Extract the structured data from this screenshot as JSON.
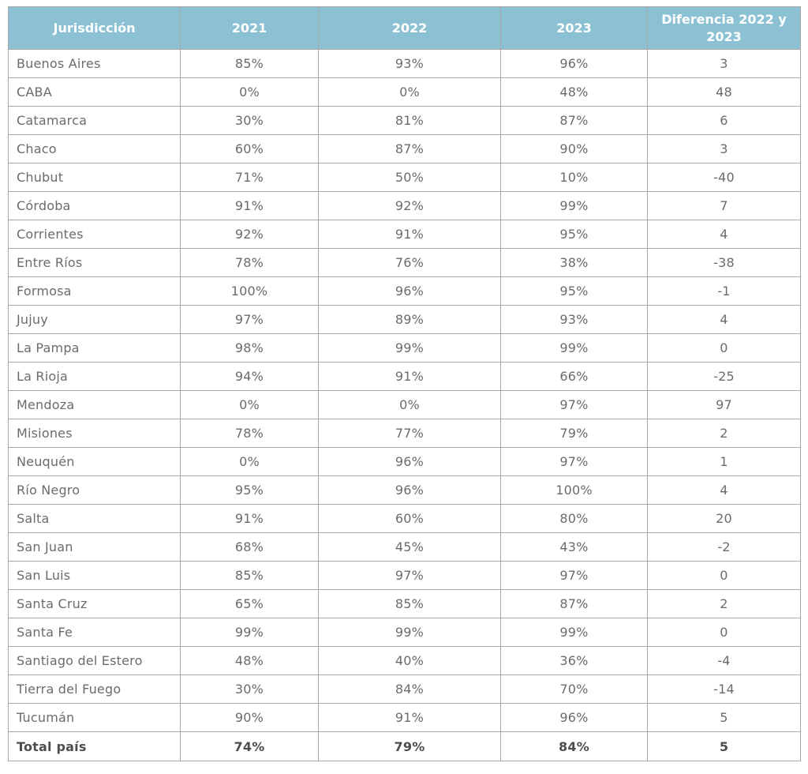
{
  "colors": {
    "header_bg": "#8cc1d4",
    "header_text": "#ffffff",
    "cell_text": "#6b6b6b",
    "total_text": "#4d4d4d",
    "border": "#a8a8a8"
  },
  "chart_data": {
    "type": "table",
    "title": "",
    "columns": [
      "Jurisdicción",
      "2021",
      "2022",
      "2023",
      "Diferencia 2022 y 2023"
    ],
    "rows": [
      {
        "jurisdiccion": "Buenos Aires",
        "y2021": "85%",
        "y2022": "93%",
        "y2023": "96%",
        "diff": "3"
      },
      {
        "jurisdiccion": "CABA",
        "y2021": "0%",
        "y2022": "0%",
        "y2023": "48%",
        "diff": "48"
      },
      {
        "jurisdiccion": "Catamarca",
        "y2021": "30%",
        "y2022": "81%",
        "y2023": "87%",
        "diff": "6"
      },
      {
        "jurisdiccion": "Chaco",
        "y2021": "60%",
        "y2022": "87%",
        "y2023": "90%",
        "diff": "3"
      },
      {
        "jurisdiccion": "Chubut",
        "y2021": "71%",
        "y2022": "50%",
        "y2023": "10%",
        "diff": "-40"
      },
      {
        "jurisdiccion": "Córdoba",
        "y2021": "91%",
        "y2022": "92%",
        "y2023": "99%",
        "diff": "7"
      },
      {
        "jurisdiccion": "Corrientes",
        "y2021": "92%",
        "y2022": "91%",
        "y2023": "95%",
        "diff": "4"
      },
      {
        "jurisdiccion": "Entre Ríos",
        "y2021": "78%",
        "y2022": "76%",
        "y2023": "38%",
        "diff": "-38"
      },
      {
        "jurisdiccion": "Formosa",
        "y2021": "100%",
        "y2022": "96%",
        "y2023": "95%",
        "diff": "-1"
      },
      {
        "jurisdiccion": "Jujuy",
        "y2021": "97%",
        "y2022": "89%",
        "y2023": "93%",
        "diff": "4"
      },
      {
        "jurisdiccion": "La Pampa",
        "y2021": "98%",
        "y2022": "99%",
        "y2023": "99%",
        "diff": "0"
      },
      {
        "jurisdiccion": "La Rioja",
        "y2021": "94%",
        "y2022": "91%",
        "y2023": "66%",
        "diff": "-25"
      },
      {
        "jurisdiccion": "Mendoza",
        "y2021": "0%",
        "y2022": "0%",
        "y2023": "97%",
        "diff": "97"
      },
      {
        "jurisdiccion": "Misiones",
        "y2021": "78%",
        "y2022": "77%",
        "y2023": "79%",
        "diff": "2"
      },
      {
        "jurisdiccion": "Neuquén",
        "y2021": "0%",
        "y2022": "96%",
        "y2023": "97%",
        "diff": "1"
      },
      {
        "jurisdiccion": "Río Negro",
        "y2021": "95%",
        "y2022": "96%",
        "y2023": "100%",
        "diff": "4"
      },
      {
        "jurisdiccion": "Salta",
        "y2021": "91%",
        "y2022": "60%",
        "y2023": "80%",
        "diff": "20"
      },
      {
        "jurisdiccion": "San Juan",
        "y2021": "68%",
        "y2022": "45%",
        "y2023": "43%",
        "diff": "-2"
      },
      {
        "jurisdiccion": "San Luis",
        "y2021": "85%",
        "y2022": "97%",
        "y2023": "97%",
        "diff": "0"
      },
      {
        "jurisdiccion": "Santa Cruz",
        "y2021": "65%",
        "y2022": "85%",
        "y2023": "87%",
        "diff": "2"
      },
      {
        "jurisdiccion": "Santa Fe",
        "y2021": "99%",
        "y2022": "99%",
        "y2023": "99%",
        "diff": "0"
      },
      {
        "jurisdiccion": "Santiago del Estero",
        "y2021": "48%",
        "y2022": "40%",
        "y2023": "36%",
        "diff": "-4"
      },
      {
        "jurisdiccion": "Tierra del Fuego",
        "y2021": "30%",
        "y2022": "84%",
        "y2023": "70%",
        "diff": "-14"
      },
      {
        "jurisdiccion": "Tucumán",
        "y2021": "90%",
        "y2022": "91%",
        "y2023": "96%",
        "diff": "5"
      }
    ],
    "total_row": {
      "jurisdiccion": "Total país",
      "y2021": "74%",
      "y2022": "79%",
      "y2023": "84%",
      "diff": "5"
    }
  }
}
